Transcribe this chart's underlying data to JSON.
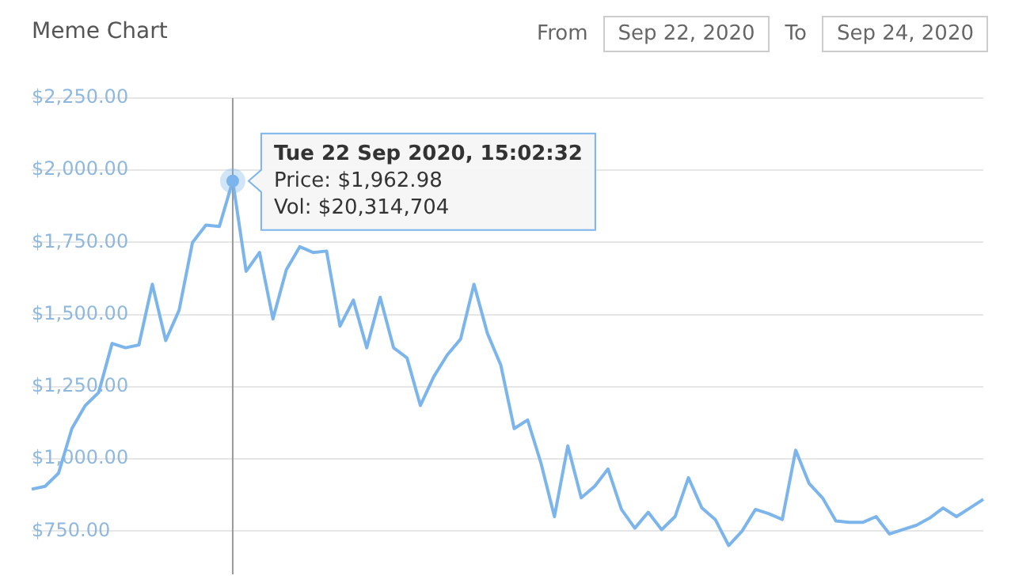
{
  "chart_data": {
    "type": "line",
    "title": "Meme Chart",
    "categories": [
      null,
      null,
      null,
      null,
      null,
      null,
      null,
      null,
      null,
      null,
      null,
      null,
      null,
      null,
      null,
      null,
      null,
      null,
      null,
      null,
      null,
      null,
      null,
      null,
      null,
      null,
      null,
      null,
      null,
      null,
      null,
      null,
      null,
      null,
      null,
      null,
      null,
      null,
      null,
      null,
      null,
      null,
      null,
      null,
      null,
      null,
      null,
      null,
      null,
      null,
      null,
      null,
      null,
      null,
      null,
      null,
      null,
      null,
      null,
      null,
      null,
      null,
      null,
      null,
      null,
      null,
      null,
      null,
      null,
      null,
      null,
      null
    ],
    "series": [
      {
        "color": "#7cb5ec",
        "values": [
          895,
          905,
          950,
          1105,
          1185,
          1230,
          1400,
          1385,
          1395,
          1605,
          1410,
          1515,
          1750,
          1810,
          1805,
          1962.98,
          1650,
          1715,
          1485,
          1655,
          1735,
          1715,
          1720,
          1460,
          1550,
          1385,
          1560,
          1385,
          1350,
          1185,
          1285,
          1360,
          1415,
          1605,
          1435,
          1325,
          1105,
          1135,
          985,
          800,
          1045,
          865,
          905,
          965,
          825,
          760,
          815,
          755,
          800,
          935,
          830,
          790,
          700,
          750,
          825,
          810,
          790,
          1030,
          915,
          865,
          785,
          780,
          780,
          800,
          740,
          755,
          770,
          795,
          830,
          800,
          830,
          860
        ]
      }
    ],
    "ylim": [
      600,
      2250
    ],
    "yticks": [
      {
        "value": 750,
        "label": "$750.00"
      },
      {
        "value": 1000,
        "label": "$1,000.00"
      },
      {
        "value": 1250,
        "label": "$1,250.00"
      },
      {
        "value": 1500,
        "label": "$1,500.00"
      },
      {
        "value": 1750,
        "label": "$1,750.00"
      },
      {
        "value": 2000,
        "label": "$2,000.00"
      },
      {
        "value": 2250,
        "label": "$2,250.00"
      }
    ],
    "grid": "y",
    "legend": false,
    "marker": "none",
    "line_style": "solid",
    "tick_labels": "y",
    "annotations": [
      "From",
      "Sep 22, 2020",
      "To",
      "Sep 24, 2020",
      "Tue 22 Sep 2020, 15:02:32\nPrice: $1,962.98\nVol: $20,314,704"
    ]
  }
}
